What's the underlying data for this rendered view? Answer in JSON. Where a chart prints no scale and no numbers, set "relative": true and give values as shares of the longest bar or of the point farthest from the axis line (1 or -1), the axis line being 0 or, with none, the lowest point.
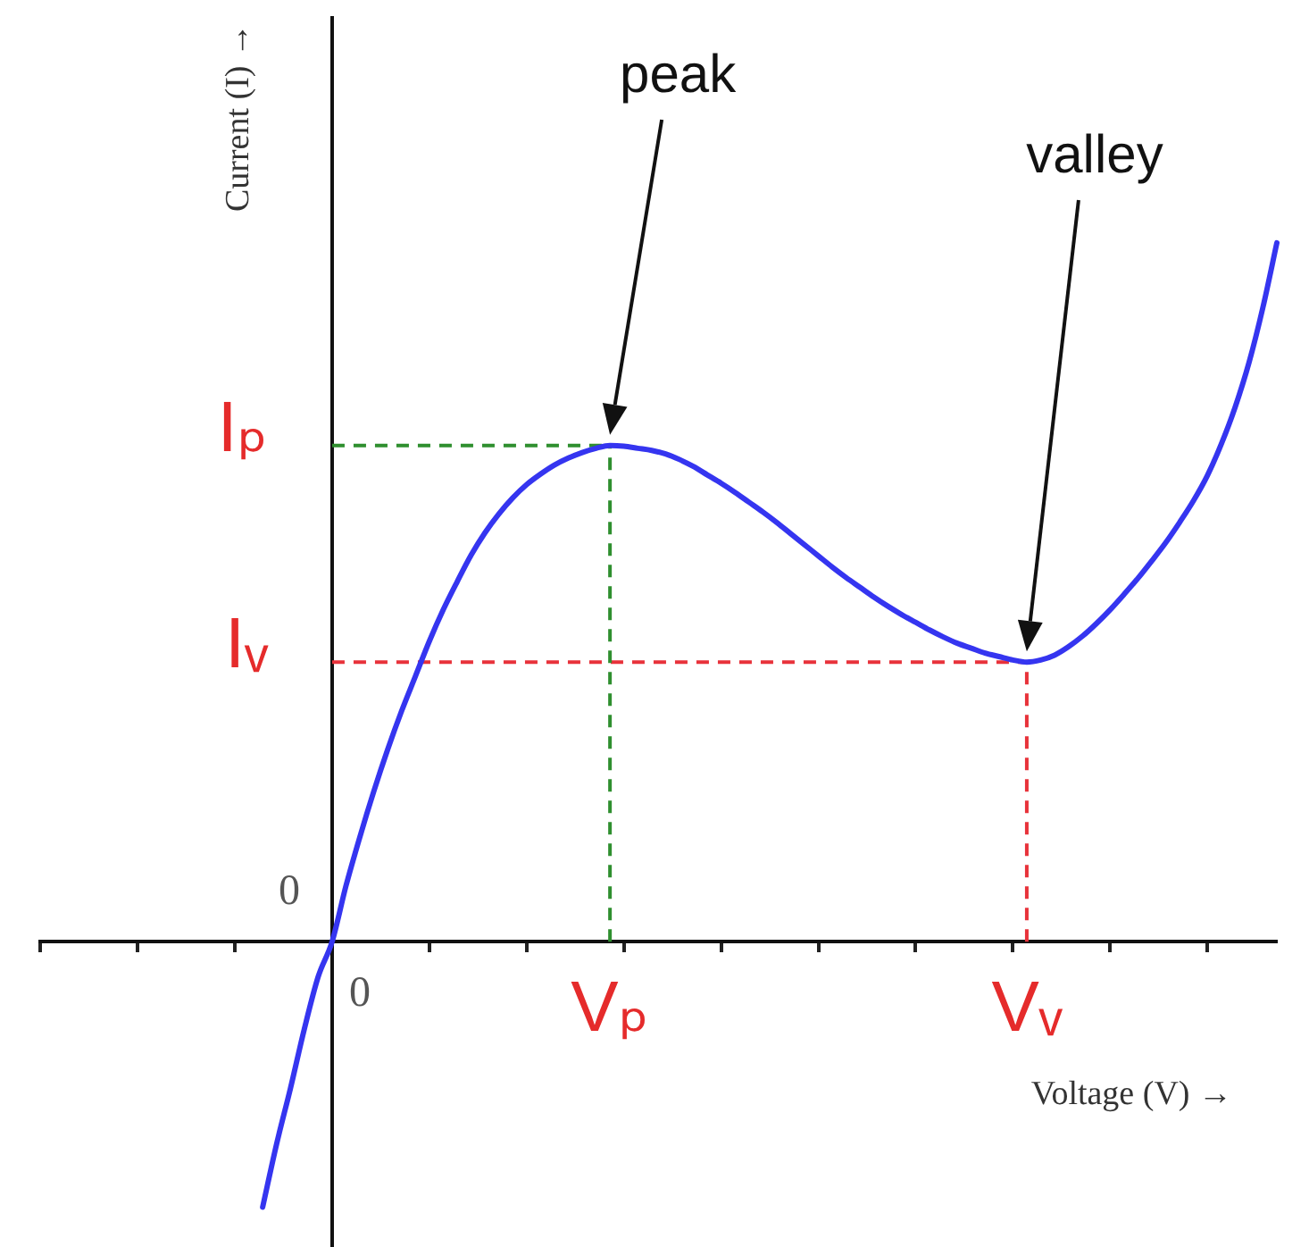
{
  "chart_data": {
    "type": "line",
    "relative": true,
    "xlabel": "Voltage (V) →",
    "ylabel": "Current (I) →",
    "marker": "none",
    "categories": [
      null,
      null,
      null,
      null,
      null,
      null,
      null,
      null,
      null,
      null,
      null,
      null,
      null,
      null,
      null,
      null,
      null,
      null,
      null,
      null,
      null,
      null,
      null,
      "0",
      null,
      null,
      null,
      null,
      null,
      null,
      null,
      null,
      null,
      null,
      null,
      null,
      null,
      null,
      null,
      null,
      null,
      "Vₚ",
      null,
      null,
      null,
      null,
      null,
      null,
      null,
      null,
      null,
      null,
      null,
      null,
      null,
      null,
      null,
      null,
      null,
      null,
      null,
      null,
      null,
      null,
      null,
      null,
      null,
      null,
      null,
      null,
      null,
      "Vᵥ",
      null,
      null,
      null,
      null,
      null,
      null,
      null,
      null,
      null,
      null,
      null,
      null,
      null,
      null,
      null,
      null,
      null,
      null
    ],
    "series": [
      {
        "color": "#3535f0",
        "values": [
          null,
          null,
          null,
          null,
          null,
          null,
          null,
          null,
          null,
          null,
          null,
          null,
          null,
          null,
          null,
          null,
          -0.38,
          -0.29,
          -0.21,
          -0.125,
          -0.05,
          0,
          0.08,
          0.15,
          0.215,
          0.275,
          0.33,
          0.38,
          0.43,
          0.475,
          0.515,
          0.553,
          0.585,
          0.612,
          0.635,
          0.654,
          0.669,
          0.682,
          0.692,
          0.7,
          0.706,
          0.71,
          0.709,
          0.706,
          0.703,
          0.698,
          0.69,
          0.68,
          0.668,
          0.656,
          0.643,
          0.629,
          0.615,
          0.6,
          0.584,
          0.568,
          0.552,
          0.536,
          0.521,
          0.507,
          0.493,
          0.48,
          0.468,
          0.457,
          0.446,
          0.436,
          0.427,
          0.42,
          0.413,
          0.408,
          0.403,
          0.4,
          0.403,
          0.41,
          0.422,
          0.437,
          0.455,
          0.475,
          0.497,
          0.52,
          0.545,
          0.571,
          0.6,
          0.631,
          0.667,
          0.712,
          0.765,
          0.829,
          0.908,
          1
        ]
      }
    ],
    "ref_lines": [
      {
        "axis": "y",
        "value": 0.71,
        "label": "Iₚ",
        "color": "#2f8f2f",
        "line_style": "dashed"
      },
      {
        "axis": "y",
        "value": 0.4,
        "label": "Iᵥ",
        "color": "#e8323a",
        "line_style": "dashed"
      },
      {
        "axis": "x",
        "value": "Vₚ",
        "color": "#2f8f2f",
        "line_style": "dashed"
      },
      {
        "axis": "x",
        "value": "Vᵥ",
        "color": "#e8323a",
        "line_style": "dashed"
      }
    ],
    "annotations": [
      "peak",
      "valley",
      "0"
    ]
  }
}
